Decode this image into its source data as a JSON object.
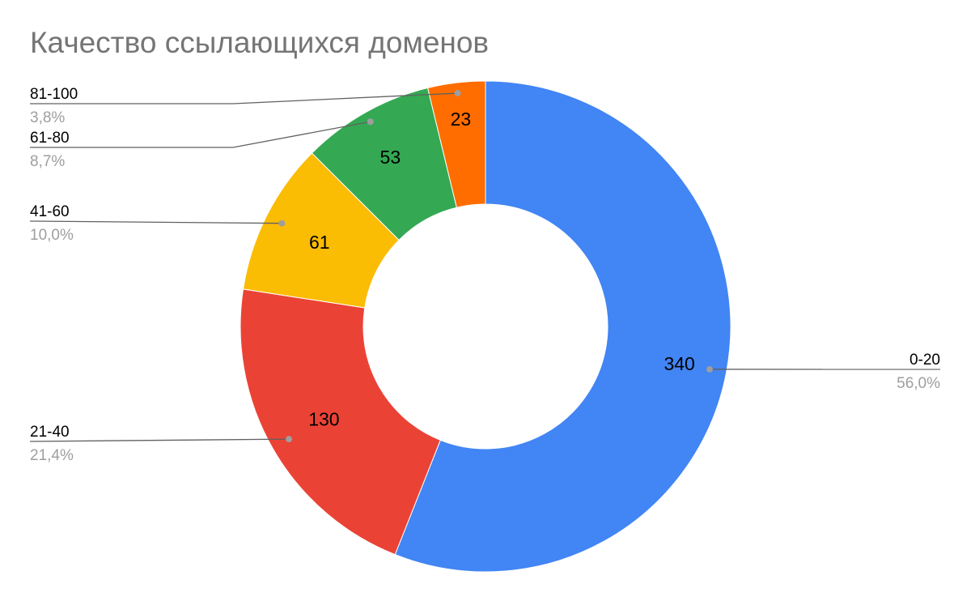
{
  "chart_data": {
    "type": "pie",
    "subtype": "donut",
    "title": "Качество ссылающихся доменов",
    "start_angle_deg": 0,
    "direction": "clockwise",
    "slices": [
      {
        "label": "0-20",
        "value": 340,
        "value_label": "340",
        "percent_label": "56,0%",
        "color": "#4285F4"
      },
      {
        "label": "21-40",
        "value": 130,
        "value_label": "130",
        "percent_label": "21,4%",
        "color": "#EA4335"
      },
      {
        "label": "41-60",
        "value": 61,
        "value_label": "61",
        "percent_label": "10,0%",
        "color": "#FBBC04"
      },
      {
        "label": "61-80",
        "value": 53,
        "value_label": "53",
        "percent_label": "8,7%",
        "color": "#34A853"
      },
      {
        "label": "81-100",
        "value": 23,
        "value_label": "23",
        "percent_label": "3,8%",
        "color": "#FF6D01"
      }
    ]
  }
}
